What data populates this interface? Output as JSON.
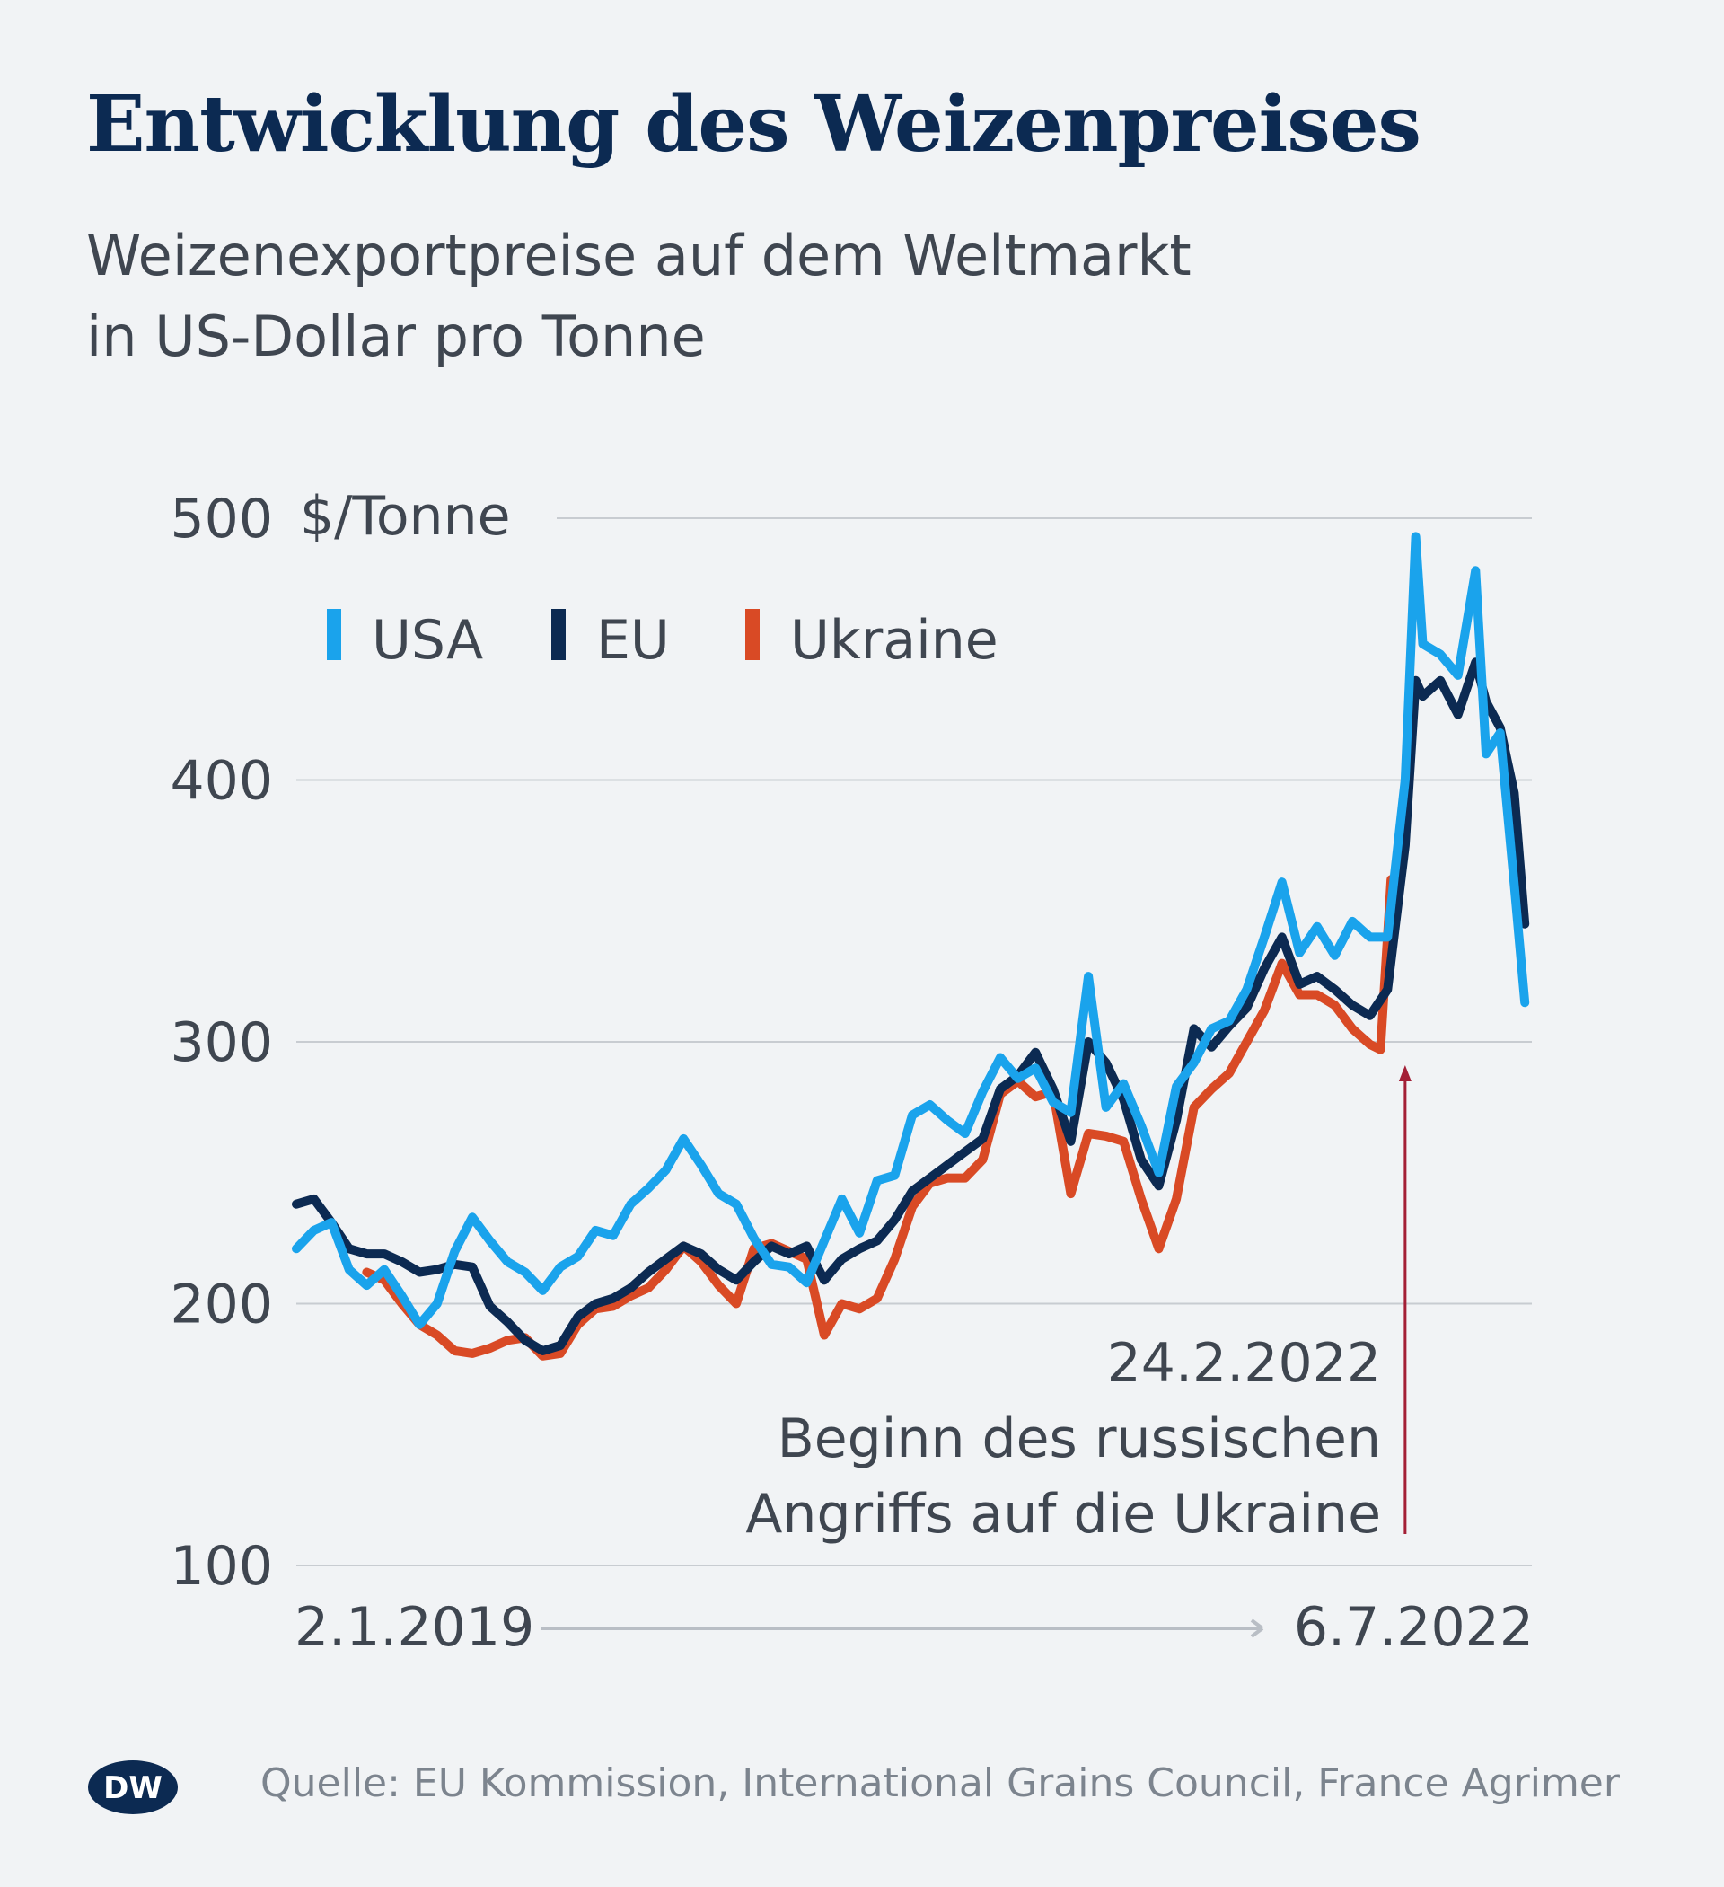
{
  "title": "Entwicklung des Weizenpreises",
  "subtitle_line1": "Weizenexportpreise auf dem Weltmarkt",
  "subtitle_line2": "in US-Dollar pro Tonne",
  "source": "Quelle: EU Kommission, International Grains Council, France Agrimer",
  "logo_text": "DW",
  "colors": {
    "title": "#0c2a52",
    "usa": "#1aa3ec",
    "eu": "#0c2a52",
    "ukraine": "#d94a25",
    "annotation": "#a31f36",
    "grid": "#c8ccd1",
    "text": "#3f4650"
  },
  "chart_data": {
    "type": "line",
    "title": "Entwicklung des Weizenpreises",
    "ylabel": "$/Tonne",
    "ylim": [
      100,
      500
    ],
    "yticks": [
      100,
      200,
      300,
      400,
      500
    ],
    "ytick_labels": [
      "100",
      "200",
      "300",
      "400",
      "500"
    ],
    "unit_label": "$/Tonne",
    "x_start_label": "2.1.2019",
    "x_end_label": "6.7.2022",
    "x_range": [
      2019.0,
      2022.51
    ],
    "legend": [
      "USA",
      "EU",
      "Ukraine"
    ],
    "annotation": {
      "x": 2022.15,
      "date": "24.2.2022",
      "line1": "Beginn des russischen",
      "line2": "Angriffs auf die Ukraine"
    },
    "series": [
      {
        "name": "USA",
        "color": "#1aa3ec",
        "points": [
          [
            2019.0,
            221
          ],
          [
            2019.05,
            228
          ],
          [
            2019.1,
            231
          ],
          [
            2019.15,
            213
          ],
          [
            2019.2,
            207
          ],
          [
            2019.25,
            213
          ],
          [
            2019.3,
            203
          ],
          [
            2019.35,
            192
          ],
          [
            2019.4,
            200
          ],
          [
            2019.45,
            220
          ],
          [
            2019.5,
            233
          ],
          [
            2019.55,
            224
          ],
          [
            2019.6,
            216
          ],
          [
            2019.65,
            212
          ],
          [
            2019.7,
            205
          ],
          [
            2019.75,
            214
          ],
          [
            2019.8,
            218
          ],
          [
            2019.85,
            228
          ],
          [
            2019.9,
            226
          ],
          [
            2019.95,
            238
          ],
          [
            2020.0,
            244
          ],
          [
            2020.05,
            251
          ],
          [
            2020.1,
            263
          ],
          [
            2020.15,
            253
          ],
          [
            2020.2,
            242
          ],
          [
            2020.25,
            238
          ],
          [
            2020.3,
            225
          ],
          [
            2020.35,
            215
          ],
          [
            2020.4,
            214
          ],
          [
            2020.45,
            208
          ],
          [
            2020.5,
            224
          ],
          [
            2020.55,
            240
          ],
          [
            2020.6,
            227
          ],
          [
            2020.65,
            247
          ],
          [
            2020.7,
            249
          ],
          [
            2020.75,
            272
          ],
          [
            2020.8,
            276
          ],
          [
            2020.85,
            270
          ],
          [
            2020.9,
            265
          ],
          [
            2020.95,
            281
          ],
          [
            2021.0,
            294
          ],
          [
            2021.05,
            286
          ],
          [
            2021.1,
            290
          ],
          [
            2021.15,
            277
          ],
          [
            2021.2,
            273
          ],
          [
            2021.25,
            325
          ],
          [
            2021.3,
            275
          ],
          [
            2021.35,
            284
          ],
          [
            2021.4,
            268
          ],
          [
            2021.45,
            250
          ],
          [
            2021.5,
            283
          ],
          [
            2021.55,
            292
          ],
          [
            2021.6,
            305
          ],
          [
            2021.65,
            308
          ],
          [
            2021.7,
            320
          ],
          [
            2021.75,
            340
          ],
          [
            2021.8,
            361
          ],
          [
            2021.85,
            334
          ],
          [
            2021.9,
            344
          ],
          [
            2021.95,
            333
          ],
          [
            2022.0,
            346
          ],
          [
            2022.05,
            340
          ],
          [
            2022.1,
            340
          ],
          [
            2022.15,
            400
          ],
          [
            2022.18,
            493
          ],
          [
            2022.2,
            452
          ],
          [
            2022.25,
            448
          ],
          [
            2022.3,
            440
          ],
          [
            2022.35,
            480
          ],
          [
            2022.38,
            410
          ],
          [
            2022.42,
            418
          ],
          [
            2022.46,
            360
          ],
          [
            2022.49,
            315
          ]
        ]
      },
      {
        "name": "EU",
        "color": "#0c2a52",
        "points": [
          [
            2019.0,
            238
          ],
          [
            2019.05,
            240
          ],
          [
            2019.1,
            231
          ],
          [
            2019.15,
            221
          ],
          [
            2019.2,
            219
          ],
          [
            2019.25,
            219
          ],
          [
            2019.3,
            216
          ],
          [
            2019.35,
            212
          ],
          [
            2019.4,
            213
          ],
          [
            2019.45,
            215
          ],
          [
            2019.5,
            214
          ],
          [
            2019.55,
            199
          ],
          [
            2019.6,
            193
          ],
          [
            2019.65,
            186
          ],
          [
            2019.7,
            182
          ],
          [
            2019.75,
            184
          ],
          [
            2019.8,
            195
          ],
          [
            2019.85,
            200
          ],
          [
            2019.9,
            202
          ],
          [
            2019.95,
            206
          ],
          [
            2020.0,
            212
          ],
          [
            2020.05,
            217
          ],
          [
            2020.1,
            222
          ],
          [
            2020.15,
            219
          ],
          [
            2020.2,
            213
          ],
          [
            2020.25,
            209
          ],
          [
            2020.3,
            216
          ],
          [
            2020.35,
            222
          ],
          [
            2020.4,
            219
          ],
          [
            2020.45,
            222
          ],
          [
            2020.5,
            209
          ],
          [
            2020.55,
            217
          ],
          [
            2020.6,
            221
          ],
          [
            2020.65,
            224
          ],
          [
            2020.7,
            232
          ],
          [
            2020.75,
            243
          ],
          [
            2020.8,
            248
          ],
          [
            2020.85,
            253
          ],
          [
            2020.9,
            258
          ],
          [
            2020.95,
            263
          ],
          [
            2021.0,
            282
          ],
          [
            2021.05,
            287
          ],
          [
            2021.1,
            296
          ],
          [
            2021.15,
            282
          ],
          [
            2021.2,
            262
          ],
          [
            2021.25,
            300
          ],
          [
            2021.3,
            292
          ],
          [
            2021.35,
            278
          ],
          [
            2021.4,
            255
          ],
          [
            2021.45,
            245
          ],
          [
            2021.5,
            270
          ],
          [
            2021.55,
            305
          ],
          [
            2021.6,
            298
          ],
          [
            2021.65,
            306
          ],
          [
            2021.7,
            313
          ],
          [
            2021.75,
            328
          ],
          [
            2021.8,
            340
          ],
          [
            2021.85,
            322
          ],
          [
            2021.9,
            325
          ],
          [
            2021.95,
            320
          ],
          [
            2022.0,
            314
          ],
          [
            2022.05,
            310
          ],
          [
            2022.1,
            320
          ],
          [
            2022.15,
            375
          ],
          [
            2022.18,
            438
          ],
          [
            2022.2,
            432
          ],
          [
            2022.25,
            438
          ],
          [
            2022.3,
            425
          ],
          [
            2022.35,
            445
          ],
          [
            2022.38,
            430
          ],
          [
            2022.42,
            420
          ],
          [
            2022.46,
            395
          ],
          [
            2022.49,
            345
          ]
        ]
      },
      {
        "name": "Ukraine",
        "color": "#d94a25",
        "points": [
          [
            2019.2,
            212
          ],
          [
            2019.25,
            209
          ],
          [
            2019.3,
            200
          ],
          [
            2019.35,
            192
          ],
          [
            2019.4,
            188
          ],
          [
            2019.45,
            182
          ],
          [
            2019.5,
            181
          ],
          [
            2019.55,
            183
          ],
          [
            2019.6,
            186
          ],
          [
            2019.65,
            187
          ],
          [
            2019.7,
            180
          ],
          [
            2019.75,
            181
          ],
          [
            2019.8,
            192
          ],
          [
            2019.85,
            198
          ],
          [
            2019.9,
            199
          ],
          [
            2019.95,
            203
          ],
          [
            2020.0,
            206
          ],
          [
            2020.05,
            213
          ],
          [
            2020.1,
            222
          ],
          [
            2020.15,
            216
          ],
          [
            2020.2,
            207
          ],
          [
            2020.25,
            200
          ],
          [
            2020.3,
            221
          ],
          [
            2020.35,
            223
          ],
          [
            2020.4,
            220
          ],
          [
            2020.45,
            217
          ],
          [
            2020.5,
            188
          ],
          [
            2020.55,
            200
          ],
          [
            2020.6,
            198
          ],
          [
            2020.65,
            202
          ],
          [
            2020.7,
            217
          ],
          [
            2020.75,
            237
          ],
          [
            2020.8,
            246
          ],
          [
            2020.85,
            248
          ],
          [
            2020.9,
            248
          ],
          [
            2020.95,
            255
          ],
          [
            2021.0,
            280
          ],
          [
            2021.05,
            285
          ],
          [
            2021.1,
            279
          ],
          [
            2021.15,
            281
          ],
          [
            2021.2,
            242
          ],
          [
            2021.25,
            265
          ],
          [
            2021.3,
            264
          ],
          [
            2021.35,
            262
          ],
          [
            2021.4,
            240
          ],
          [
            2021.45,
            221
          ],
          [
            2021.5,
            240
          ],
          [
            2021.55,
            275
          ],
          [
            2021.6,
            282
          ],
          [
            2021.65,
            288
          ],
          [
            2021.7,
            300
          ],
          [
            2021.75,
            312
          ],
          [
            2021.8,
            330
          ],
          [
            2021.85,
            318
          ],
          [
            2021.9,
            318
          ],
          [
            2021.95,
            314
          ],
          [
            2022.0,
            305
          ],
          [
            2022.05,
            299
          ],
          [
            2022.08,
            297
          ],
          [
            2022.11,
            362
          ]
        ]
      }
    ]
  }
}
